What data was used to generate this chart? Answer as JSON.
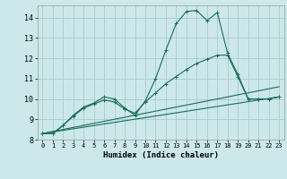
{
  "xlabel": "Humidex (Indice chaleur)",
  "bg_color": "#cce8ea",
  "grid_color": "#aacccc",
  "line_color": "#1a6b5a",
  "xlim": [
    -0.5,
    23.5
  ],
  "ylim": [
    8.0,
    14.6
  ],
  "yticks": [
    8,
    9,
    10,
    11,
    12,
    13,
    14
  ],
  "xticks": [
    0,
    1,
    2,
    3,
    4,
    5,
    6,
    7,
    8,
    9,
    10,
    11,
    12,
    13,
    14,
    15,
    16,
    17,
    18,
    19,
    20,
    21,
    22,
    23
  ],
  "series": [
    {
      "x": [
        0,
        1,
        2,
        3,
        4,
        5,
        6,
        7,
        8,
        9,
        10,
        11,
        12,
        13,
        14,
        15,
        16,
        17,
        18,
        19,
        20,
        21,
        22,
        23
      ],
      "y": [
        8.3,
        8.3,
        8.7,
        9.2,
        9.6,
        9.8,
        10.1,
        10.0,
        9.55,
        9.2,
        9.9,
        11.0,
        12.4,
        13.7,
        14.3,
        14.35,
        13.85,
        14.25,
        12.25,
        11.2,
        10.0,
        10.0,
        10.0,
        10.1
      ],
      "marker": true
    },
    {
      "x": [
        0,
        1,
        2,
        3,
        4,
        5,
        6,
        7,
        8,
        9,
        10,
        11,
        12,
        13,
        14,
        15,
        16,
        17,
        18,
        19,
        20,
        21,
        22,
        23
      ],
      "y": [
        8.3,
        8.3,
        8.7,
        9.15,
        9.55,
        9.75,
        9.95,
        9.85,
        9.5,
        9.3,
        9.85,
        10.3,
        10.75,
        11.1,
        11.45,
        11.75,
        11.95,
        12.15,
        12.15,
        11.1,
        10.0,
        10.0,
        10.0,
        10.1
      ],
      "marker": true
    },
    {
      "x": [
        0,
        23
      ],
      "y": [
        8.3,
        10.1
      ],
      "marker": false
    },
    {
      "x": [
        0,
        23
      ],
      "y": [
        8.3,
        10.6
      ],
      "marker": false
    }
  ]
}
